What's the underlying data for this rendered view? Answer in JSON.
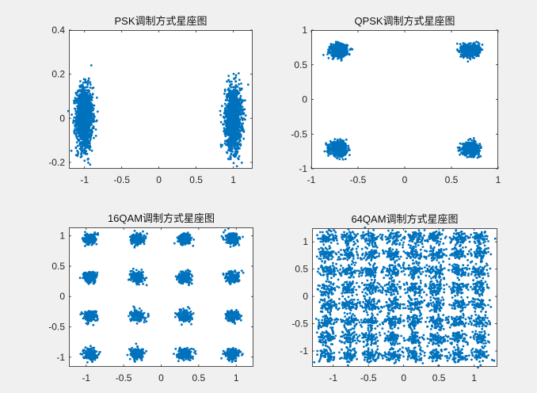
{
  "chart_data": [
    {
      "type": "scatter",
      "title": "PSK调制方式星座图",
      "xlim": [
        -1.21,
        1.26
      ],
      "ylim": [
        -0.229,
        0.4
      ],
      "xticks": [
        -1,
        -0.5,
        0,
        0.5,
        1
      ],
      "xtick_labels": [
        "-1",
        "-0.5",
        "0",
        "0.5",
        "1"
      ],
      "yticks": [
        -0.2,
        0,
        0.2,
        0.4
      ],
      "ytick_labels": [
        "-0.2",
        "0",
        "0.2",
        "0.4"
      ],
      "constellation_i": [
        -1,
        1
      ],
      "constellation_q": [
        0
      ],
      "noise_std": [
        0.055,
        0.07
      ],
      "points_per_symbol": 1400,
      "color": "#0072BD"
    },
    {
      "type": "scatter",
      "title": "QPSK调制方式星座图",
      "xlim": [
        -1,
        1
      ],
      "ylim": [
        -1,
        1
      ],
      "xticks": [
        -1,
        -0.5,
        0,
        0.5,
        1
      ],
      "xtick_labels": [
        "-1",
        "-0.5",
        "0",
        "0.5",
        "1"
      ],
      "yticks": [
        -1,
        -0.5,
        0,
        0.5,
        1
      ],
      "ytick_labels": [
        "-1",
        "-0.5",
        "0",
        "0.5",
        "1"
      ],
      "constellation_i": [
        -0.707,
        0.707
      ],
      "constellation_q": [
        -0.707,
        0.707
      ],
      "noise_std": [
        0.045,
        0.045
      ],
      "points_per_symbol": 600,
      "color": "#0072BD"
    },
    {
      "type": "scatter",
      "title": "16QAM调制方式星座图",
      "xlim": [
        -1.23,
        1.23
      ],
      "ylim": [
        -1.16,
        1.14
      ],
      "xticks": [
        -1,
        -0.5,
        0,
        0.5,
        1
      ],
      "xtick_labels": [
        "-1",
        "-0.5",
        "0",
        "0.5",
        "1"
      ],
      "yticks": [
        -1,
        -0.5,
        0,
        0.5,
        1
      ],
      "ytick_labels": [
        "-1",
        "-0.5",
        "0",
        "0.5",
        "1"
      ],
      "constellation_i": [
        -0.949,
        -0.316,
        0.316,
        0.949
      ],
      "constellation_q": [
        -0.949,
        -0.316,
        0.316,
        0.949
      ],
      "noise_std": [
        0.045,
        0.045
      ],
      "points_per_symbol": 200,
      "color": "#0072BD"
    },
    {
      "type": "scatter",
      "title": "64QAM调制方式星座图",
      "xlim": [
        -1.3,
        1.33
      ],
      "ylim": [
        -1.29,
        1.25
      ],
      "xticks": [
        -1,
        -0.5,
        0,
        0.5,
        1
      ],
      "xtick_labels": [
        "-1",
        "-0.5",
        "0",
        "0.5",
        "1"
      ],
      "yticks": [
        -1,
        -0.5,
        0,
        0.5,
        1
      ],
      "ytick_labels": [
        "-1",
        "-0.5",
        "0",
        "0.5",
        "1"
      ],
      "constellation_i": [
        -1.08,
        -0.772,
        -0.463,
        -0.154,
        0.154,
        0.463,
        0.772,
        1.08
      ],
      "constellation_q": [
        -1.08,
        -0.772,
        -0.463,
        -0.154,
        0.154,
        0.463,
        0.772,
        1.08
      ],
      "noise_std": [
        0.065,
        0.065
      ],
      "points_per_symbol": 70,
      "color": "#0072BD"
    }
  ]
}
